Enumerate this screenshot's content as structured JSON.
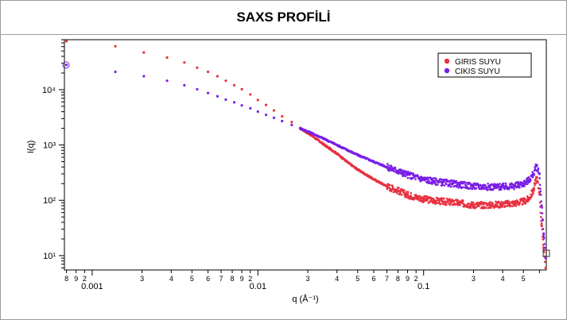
{
  "page": {
    "title": "SAXS PROFİLİ"
  },
  "chart_data": {
    "type": "scatter",
    "title": "",
    "xlabel": "q (Å⁻¹)",
    "ylabel": "I(q)",
    "xscale": "log",
    "yscale": "log",
    "xlim": [
      0.00068,
      0.55
    ],
    "ylim": [
      5.5,
      80000
    ],
    "grid": false,
    "legend_position": "top-right",
    "x_major_tick_labels": [
      "0.001",
      "0.01",
      "0.1"
    ],
    "y_major_tick_labels": [
      "10¹",
      "10²",
      "10³",
      "10⁴"
    ],
    "x_minor_tick_labels": [
      "8",
      "9",
      "2",
      "3",
      "4",
      "5",
      "6",
      "7",
      "8",
      "9",
      "2",
      "3",
      "4",
      "5",
      "6",
      "7",
      "8",
      "9",
      "2",
      "3",
      "4",
      "5"
    ],
    "series": [
      {
        "name": "GIRIS SUYU",
        "color": "#e8303f",
        "x": [
          0.0007,
          0.00138,
          0.00205,
          0.00283,
          0.0036,
          0.0043,
          0.005,
          0.0057,
          0.0064,
          0.0072,
          0.008,
          0.009,
          0.01,
          0.0112,
          0.0125,
          0.014,
          0.016,
          0.018,
          0.021,
          0.025,
          0.03,
          0.035,
          0.04,
          0.05,
          0.06,
          0.07,
          0.08,
          0.1,
          0.13,
          0.16,
          0.2,
          0.25,
          0.3,
          0.35,
          0.4,
          0.43,
          0.46,
          0.48,
          0.5,
          0.515,
          0.53,
          0.545
        ],
        "y": [
          75000,
          61000,
          47000,
          38000,
          31000,
          25000,
          21000,
          17500,
          14500,
          12000,
          10200,
          8200,
          6500,
          5300,
          4200,
          3300,
          2600,
          2000,
          1500,
          1020,
          700,
          480,
          360,
          240,
          180,
          150,
          125,
          105,
          95,
          90,
          82,
          82,
          85,
          88,
          95,
          105,
          150,
          260,
          140,
          35,
          14,
          6
        ]
      },
      {
        "name": "CIKIS SUYU",
        "color": "#7a1fe6",
        "x": [
          0.0007,
          0.00138,
          0.00205,
          0.00283,
          0.0036,
          0.0043,
          0.005,
          0.0057,
          0.0064,
          0.0072,
          0.008,
          0.009,
          0.01,
          0.0112,
          0.0125,
          0.014,
          0.016,
          0.018,
          0.021,
          0.025,
          0.03,
          0.035,
          0.04,
          0.05,
          0.06,
          0.07,
          0.08,
          0.1,
          0.13,
          0.16,
          0.2,
          0.25,
          0.3,
          0.35,
          0.4,
          0.43,
          0.46,
          0.48,
          0.5,
          0.515,
          0.53,
          0.545
        ],
        "y": [
          28000,
          21000,
          17500,
          14500,
          12000,
          10200,
          8700,
          7600,
          6600,
          5900,
          5200,
          4600,
          4000,
          3500,
          3100,
          2700,
          2300,
          2000,
          1650,
          1300,
          1000,
          800,
          660,
          500,
          400,
          340,
          290,
          240,
          210,
          195,
          180,
          175,
          175,
          180,
          200,
          230,
          300,
          420,
          300,
          80,
          25,
          9
        ]
      }
    ]
  }
}
